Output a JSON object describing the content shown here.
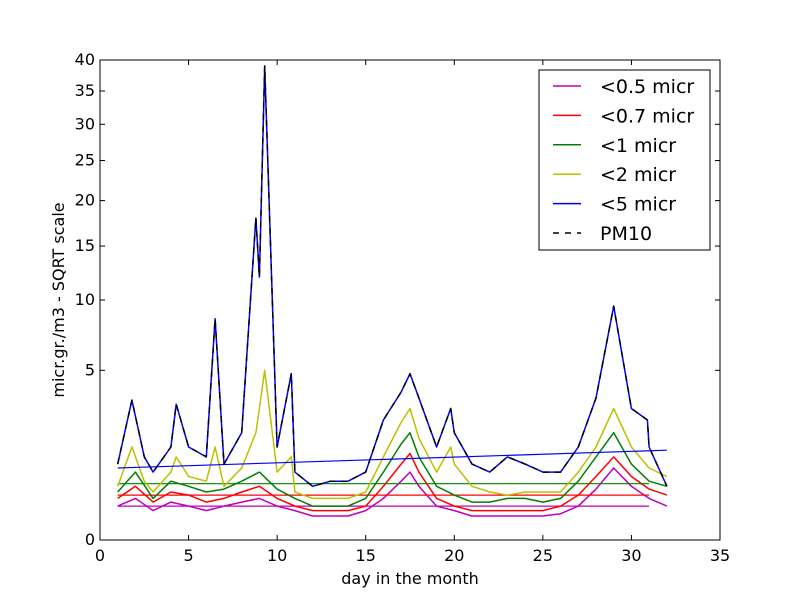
{
  "chart_data": {
    "type": "line",
    "title": "",
    "xlabel": "day in the month",
    "ylabel": "micr.gr./m3 - SQRT scale",
    "xlim": [
      0,
      35
    ],
    "ylim": [
      0,
      40
    ],
    "y_scale": "sqrt",
    "grid": false,
    "legend_position": "top-right",
    "x_ticks": [
      "0",
      "5",
      "10",
      "15",
      "20",
      "25",
      "30",
      "35"
    ],
    "y_ticks": [
      "0",
      "5",
      "10",
      "15",
      "20",
      "25",
      "30",
      "35",
      "40"
    ],
    "x_tick_values": [
      0,
      5,
      10,
      15,
      20,
      25,
      30,
      35
    ],
    "y_tick_values": [
      0,
      5,
      10,
      15,
      20,
      25,
      30,
      35,
      40
    ],
    "series": [
      {
        "name": "<0.5 micr",
        "color": "#bf00bf",
        "style": "solid",
        "x": [
          1,
          2,
          3,
          4,
          5,
          6,
          7,
          8,
          9,
          10,
          11,
          12,
          13,
          14,
          15,
          16,
          17,
          17.5,
          18,
          19,
          20,
          21,
          22,
          23,
          24,
          25,
          26,
          27,
          28,
          29,
          30,
          31,
          32
        ],
        "y": [
          0.2,
          0.3,
          0.15,
          0.25,
          0.2,
          0.15,
          0.2,
          0.25,
          0.3,
          0.2,
          0.15,
          0.1,
          0.1,
          0.1,
          0.15,
          0.3,
          0.6,
          0.8,
          0.5,
          0.2,
          0.15,
          0.1,
          0.1,
          0.1,
          0.1,
          0.1,
          0.12,
          0.2,
          0.45,
          0.9,
          0.5,
          0.3,
          0.2
        ],
        "baseline": [
          [
            1,
            0.2
          ],
          [
            31,
            0.2
          ]
        ]
      },
      {
        "name": "<0.7 micr",
        "color": "#ff0000",
        "style": "solid",
        "x": [
          1,
          2,
          3,
          4,
          5,
          6,
          7,
          8,
          9,
          10,
          11,
          12,
          13,
          14,
          15,
          16,
          17,
          17.5,
          18,
          19,
          20,
          21,
          22,
          23,
          24,
          25,
          26,
          27,
          28,
          29,
          30,
          31,
          32
        ],
        "y": [
          0.3,
          0.5,
          0.25,
          0.4,
          0.35,
          0.25,
          0.3,
          0.4,
          0.5,
          0.3,
          0.2,
          0.15,
          0.15,
          0.15,
          0.2,
          0.5,
          1.0,
          1.3,
          0.8,
          0.3,
          0.2,
          0.15,
          0.15,
          0.15,
          0.15,
          0.15,
          0.2,
          0.35,
          0.7,
          1.2,
          0.7,
          0.45,
          0.35
        ],
        "baseline": [
          [
            1,
            0.35
          ],
          [
            31,
            0.35
          ]
        ]
      },
      {
        "name": "<1 micr",
        "color": "#008000",
        "style": "solid",
        "x": [
          1,
          2,
          3,
          4,
          5,
          6,
          7,
          8,
          9,
          10,
          11,
          12,
          13,
          14,
          15,
          16,
          17,
          17.5,
          18,
          19,
          20,
          21,
          22,
          23,
          24,
          25,
          26,
          27,
          28,
          29,
          30,
          31,
          32
        ],
        "y": [
          0.4,
          0.8,
          0.3,
          0.6,
          0.5,
          0.4,
          0.45,
          0.6,
          0.8,
          0.45,
          0.3,
          0.2,
          0.2,
          0.2,
          0.3,
          0.8,
          1.6,
          2.0,
          1.2,
          0.5,
          0.35,
          0.25,
          0.25,
          0.3,
          0.3,
          0.25,
          0.3,
          0.6,
          1.2,
          2.0,
          1.0,
          0.6,
          0.5
        ],
        "baseline": [
          [
            1,
            0.55
          ],
          [
            31,
            0.55
          ]
        ]
      },
      {
        "name": "<2 micr",
        "color": "#bfbf00",
        "style": "solid",
        "x": [
          1,
          1.8,
          2.5,
          3,
          4,
          4.3,
          5,
          6,
          6.5,
          7,
          8,
          8.8,
          9,
          9.3,
          10,
          10.8,
          11,
          12,
          13,
          14,
          15,
          16,
          17,
          17.5,
          18,
          19,
          19.8,
          20,
          21,
          22,
          23,
          24,
          25,
          26,
          27,
          28,
          29,
          30,
          31,
          32
        ],
        "y": [
          0.5,
          1.5,
          0.6,
          0.4,
          0.8,
          1.2,
          0.7,
          0.6,
          1.5,
          0.5,
          0.9,
          2.0,
          3.0,
          5.0,
          0.8,
          1.2,
          0.4,
          0.3,
          0.3,
          0.3,
          0.4,
          1.2,
          2.4,
          3.0,
          1.8,
          0.8,
          1.5,
          1.0,
          0.5,
          0.4,
          0.35,
          0.4,
          0.4,
          0.4,
          0.8,
          1.5,
          3.0,
          1.5,
          0.9,
          0.7
        ]
      },
      {
        "name": "<5 micr",
        "color": "#0000ff",
        "style": "solid",
        "x": [
          1,
          1.8,
          2.5,
          3,
          4,
          4.3,
          5,
          6,
          6.5,
          7,
          8,
          8.8,
          9,
          9.3,
          10,
          10.8,
          11,
          12,
          13,
          14,
          15,
          16,
          17,
          17.5,
          18,
          19,
          19.8,
          20,
          21,
          22,
          23,
          24,
          25,
          26,
          27,
          28,
          29,
          30,
          30.9,
          31,
          32
        ],
        "y": [
          1.0,
          3.4,
          1.2,
          0.8,
          1.5,
          3.2,
          1.5,
          1.2,
          8.5,
          1.0,
          2.0,
          18.0,
          12.0,
          39.0,
          1.5,
          4.8,
          0.8,
          0.5,
          0.6,
          0.6,
          0.8,
          2.5,
          3.8,
          4.8,
          3.5,
          1.5,
          3.0,
          2.0,
          1.0,
          0.8,
          1.2,
          1.0,
          0.8,
          0.8,
          1.5,
          3.5,
          9.5,
          3.0,
          2.5,
          1.5,
          0.5
        ],
        "baseline": [
          [
            1,
            0.9
          ],
          [
            32,
            1.4
          ]
        ]
      },
      {
        "name": "PM10",
        "color": "#000000",
        "style": "dashed",
        "x": [
          1,
          1.8,
          2.5,
          3,
          4,
          4.3,
          5,
          6,
          6.5,
          7,
          8,
          8.8,
          9,
          9.3,
          10,
          10.8,
          11,
          12,
          13,
          14,
          15,
          16,
          17,
          17.5,
          18,
          19,
          19.8,
          20,
          21,
          22,
          23,
          24,
          25,
          26,
          27,
          28,
          29,
          30,
          30.9,
          31,
          32
        ],
        "y": [
          1.0,
          3.4,
          1.2,
          0.8,
          1.5,
          3.2,
          1.5,
          1.2,
          8.5,
          1.0,
          2.0,
          18.0,
          12.0,
          39.0,
          1.5,
          4.8,
          0.8,
          0.5,
          0.6,
          0.6,
          0.8,
          2.5,
          3.8,
          4.8,
          3.5,
          1.5,
          3.0,
          2.0,
          1.0,
          0.8,
          1.2,
          1.0,
          0.8,
          0.8,
          1.5,
          3.5,
          9.5,
          3.0,
          2.5,
          1.5,
          0.5
        ]
      }
    ]
  }
}
